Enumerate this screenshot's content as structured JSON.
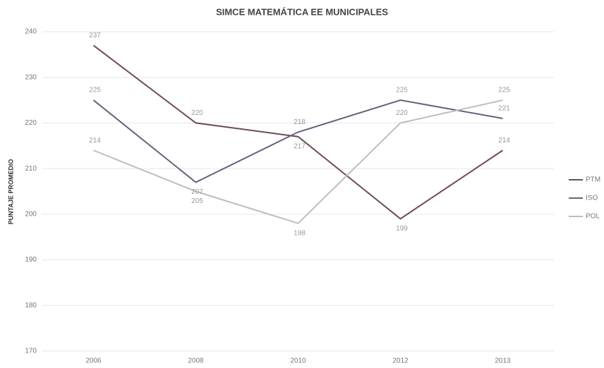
{
  "chart_data": {
    "type": "line",
    "title": "SIMCE MATEMÁTICA EE MUNICIPALES",
    "y_label": "PUNTAJE PROMEDIO",
    "categories": [
      "2006",
      "2008",
      "2010",
      "2012",
      "2013"
    ],
    "series": [
      {
        "name": "PTM",
        "color": "#6e4c55",
        "values": [
          237,
          220,
          217,
          199,
          214
        ]
      },
      {
        "name": "ISO",
        "color": "#6c5f7c",
        "values": [
          225,
          207,
          218,
          225,
          221
        ]
      },
      {
        "name": "POL",
        "color": "#bdbdbd",
        "values": [
          214,
          205,
          198,
          220,
          225
        ]
      }
    ],
    "ylim": [
      170,
      240
    ],
    "yticks": [
      170,
      180,
      190,
      200,
      210,
      220,
      230,
      240
    ],
    "grid": true,
    "legend": "right"
  }
}
